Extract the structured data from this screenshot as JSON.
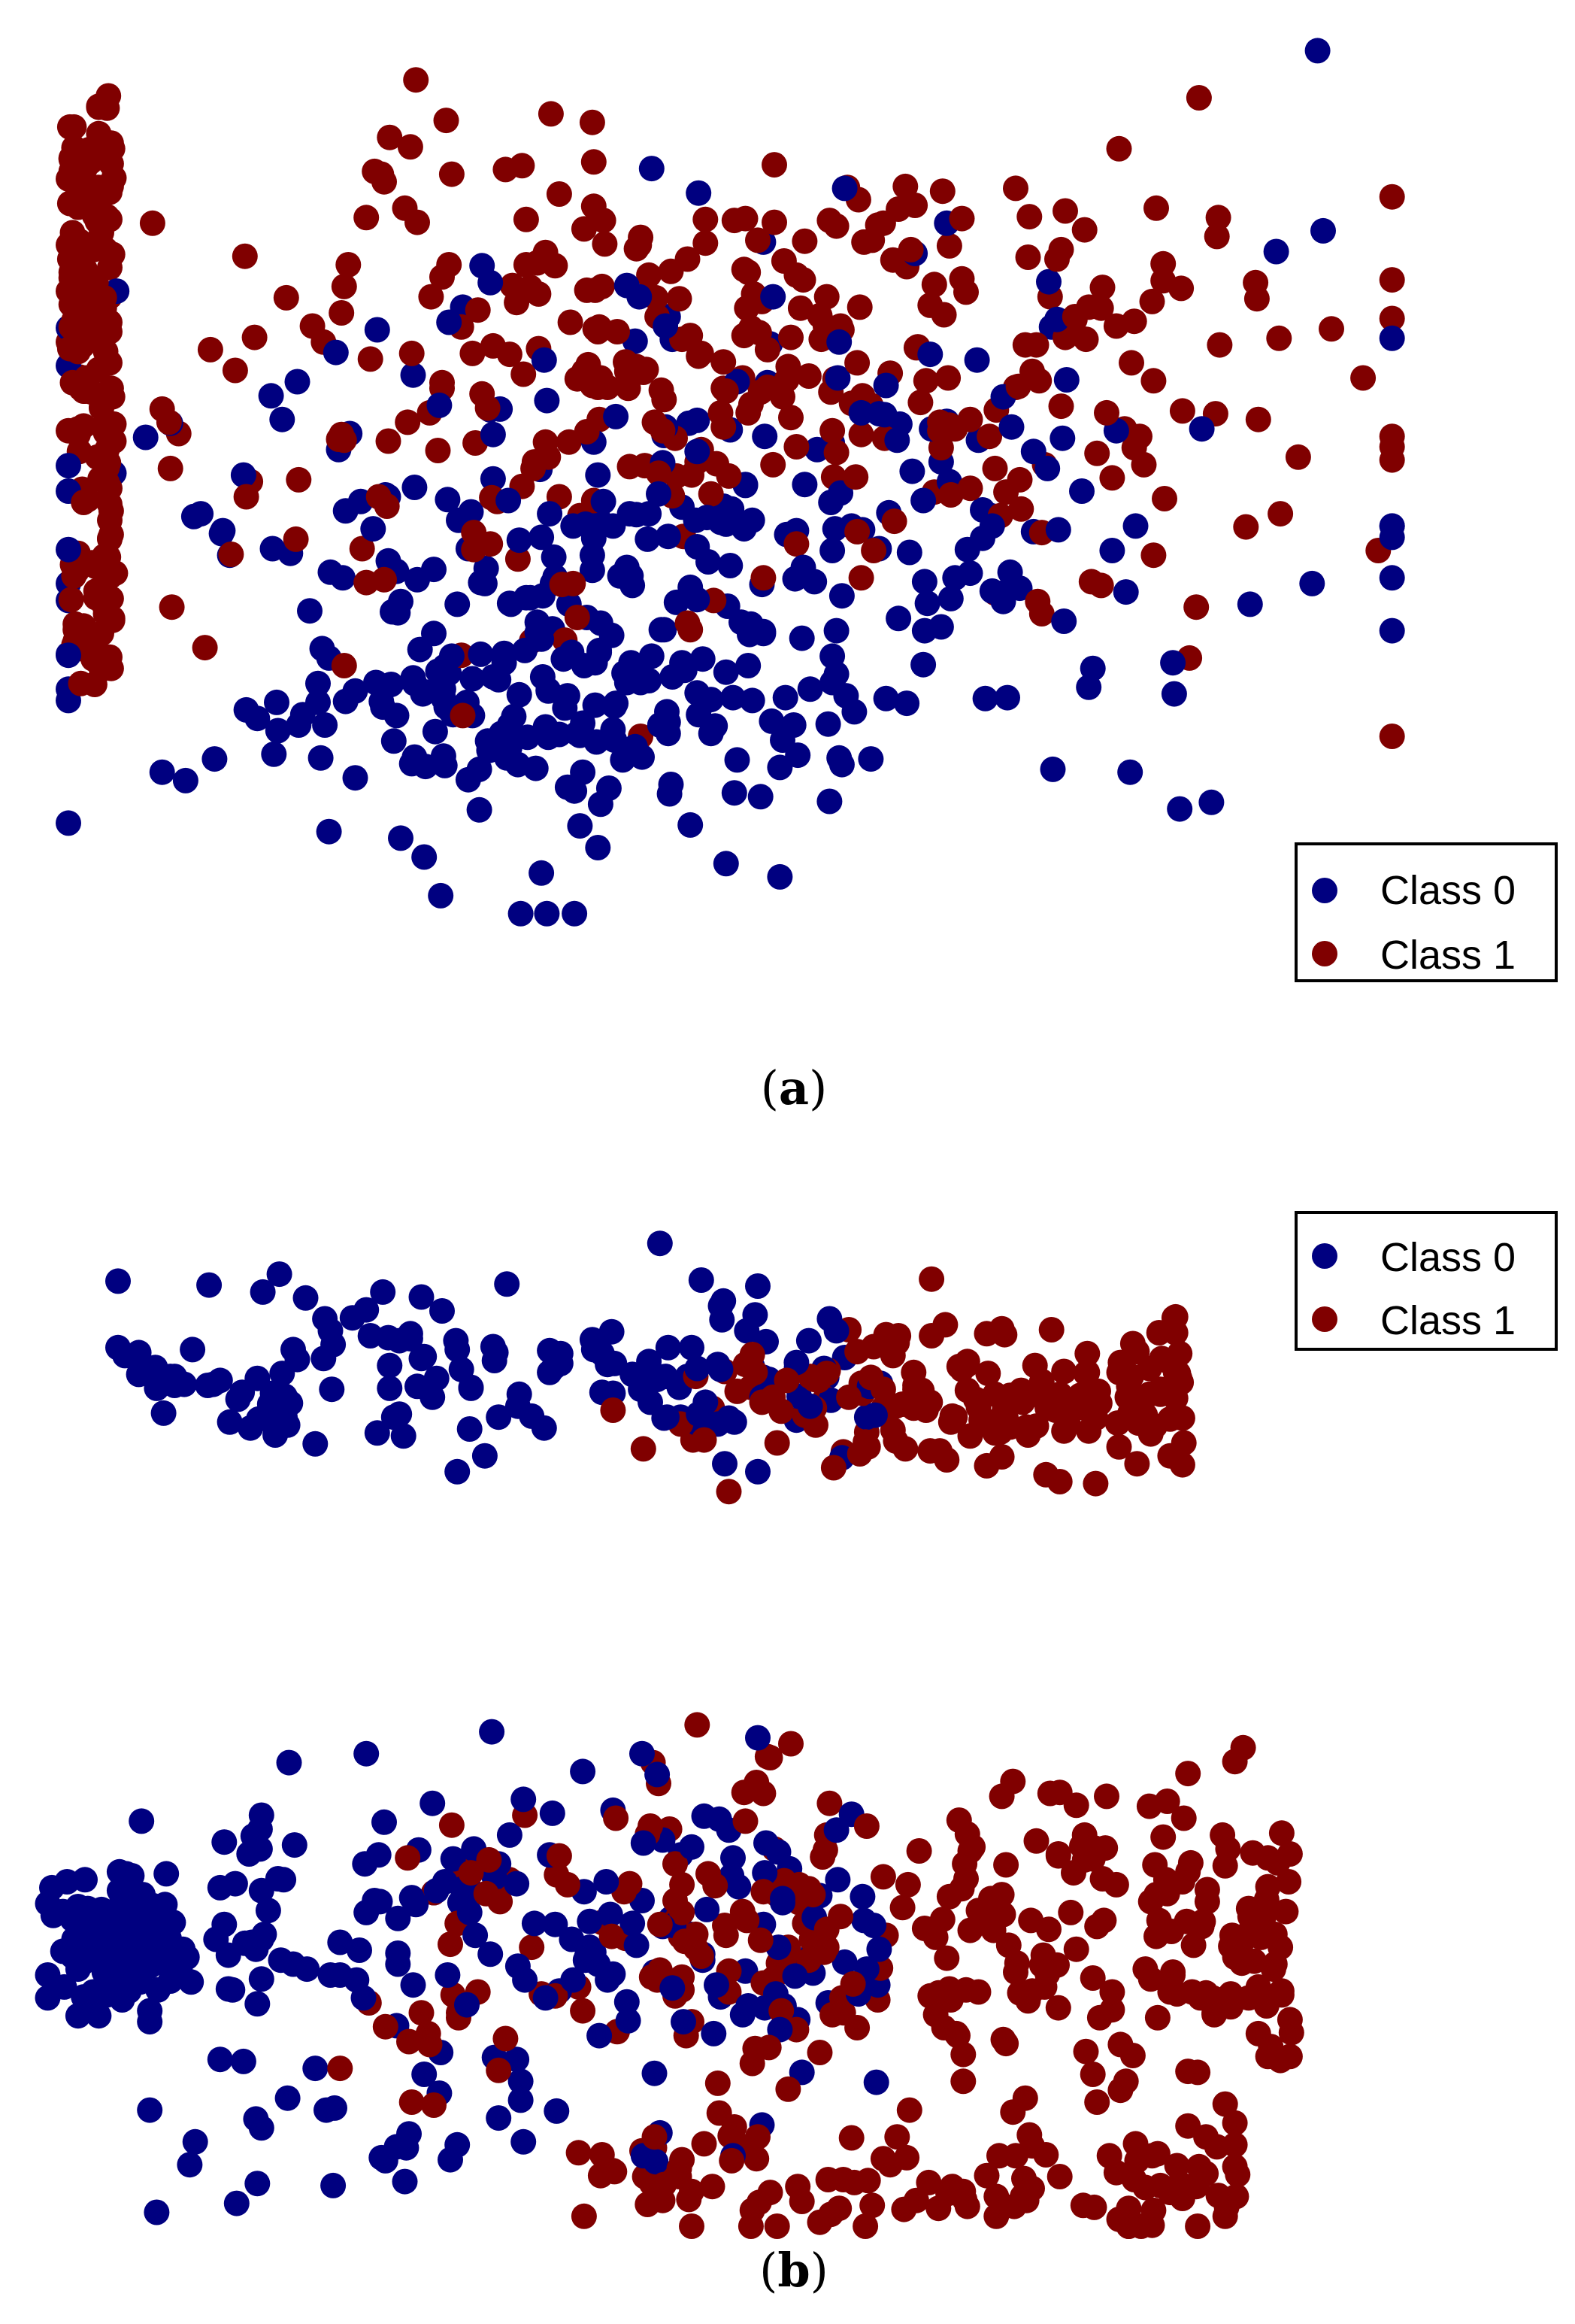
{
  "chart_data": [
    {
      "type": "scatter",
      "panel_label": "a",
      "axes_visible": false,
      "grid": false,
      "legend_position": "bottom-right",
      "xlim": [
        0,
        1000
      ],
      "ylim": [
        0,
        1000
      ],
      "series": [
        {
          "name": "Class 0",
          "color": "#000080",
          "points": []
        },
        {
          "name": "Class 1",
          "color": "#800000",
          "points": []
        }
      ]
    },
    {
      "type": "scatter",
      "panel_label": "b",
      "axes_visible": false,
      "grid": false,
      "legend_position": "top-right",
      "xlim": [
        0,
        1000
      ],
      "ylim": [
        0,
        1000
      ],
      "series": [
        {
          "name": "Class 0",
          "color": "#000080",
          "points": []
        },
        {
          "name": "Class 1",
          "color": "#800000",
          "points": []
        }
      ]
    }
  ],
  "captions": {
    "a": {
      "open": "(",
      "label": "a",
      "close": ")"
    },
    "b": {
      "open": "(",
      "label": "b",
      "close": ")"
    }
  }
}
